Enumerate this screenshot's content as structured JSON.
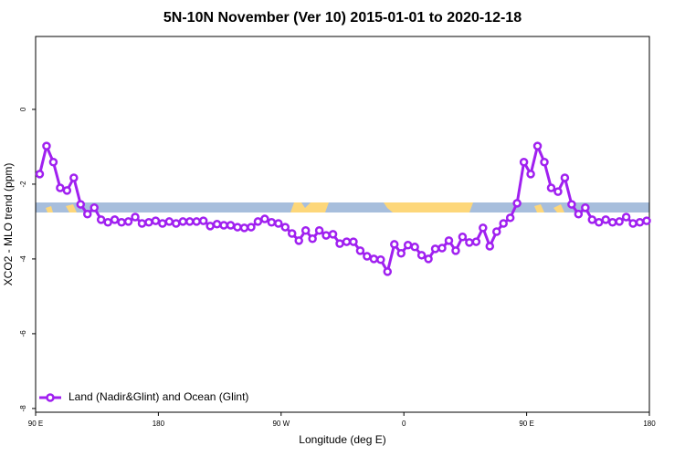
{
  "chart_data": {
    "type": "line",
    "title": "5N-10N November (Ver 10)   2015-01-01 to 2020-12-18",
    "x_label": "Longitude (deg E)",
    "y_label": "XCO2 - MLO trend (ppm)",
    "xlim": [
      90,
      540
    ],
    "ylim": [
      -8.1,
      1.95
    ],
    "xticks": [
      {
        "value": 90,
        "label": "90 E"
      },
      180,
      {
        "value": 270,
        "label": "90 W"
      },
      {
        "value": 360,
        "label": "0"
      },
      {
        "value": 450,
        "label": "90 E"
      },
      {
        "value": 540,
        "label": "180"
      }
    ],
    "yticks": [
      0,
      -2,
      -4,
      -6,
      -8
    ],
    "legend": "bottom-left",
    "x": [
      93,
      98,
      103,
      108,
      113,
      118,
      123,
      128,
      133,
      138,
      143,
      148,
      153,
      158,
      163,
      168,
      173,
      178,
      183,
      188,
      193,
      198,
      203,
      208,
      213,
      218,
      223,
      228,
      233,
      238,
      243,
      248,
      253,
      258,
      263,
      268,
      273,
      278,
      283,
      288,
      293,
      298,
      303,
      308,
      313,
      318,
      323,
      328,
      333,
      338,
      343,
      348,
      353,
      358,
      363,
      368,
      373,
      378,
      383,
      388,
      393,
      398,
      403,
      408,
      413,
      418,
      423,
      428,
      433,
      438,
      443,
      448,
      453,
      458,
      463,
      468,
      473,
      478,
      483,
      488,
      493,
      498,
      503,
      508,
      513,
      518,
      523,
      528,
      533,
      538
    ],
    "series": [
      {
        "name": "Land (Nadir&Glint) and Ocean (Glint)",
        "color": "#a020f0",
        "values": [
          -1.73,
          -0.98,
          -1.41,
          -2.1,
          -2.17,
          -1.83,
          -2.54,
          -2.8,
          -2.63,
          -2.95,
          -3.02,
          -2.95,
          -3.02,
          -3.0,
          -2.88,
          -3.05,
          -3.02,
          -2.98,
          -3.05,
          -3.0,
          -3.05,
          -3.0,
          -3.0,
          -3.0,
          -2.98,
          -3.12,
          -3.07,
          -3.1,
          -3.1,
          -3.15,
          -3.17,
          -3.15,
          -3.0,
          -2.93,
          -3.02,
          -3.05,
          -3.15,
          -3.32,
          -3.51,
          -3.24,
          -3.46,
          -3.24,
          -3.37,
          -3.34,
          -3.59,
          -3.54,
          -3.54,
          -3.78,
          -3.93,
          -4.0,
          -4.02,
          -4.34,
          -3.61,
          -3.85,
          -3.63,
          -3.68,
          -3.9,
          -4.0,
          -3.73,
          -3.71,
          -3.51,
          -3.78,
          -3.41,
          -3.56,
          -3.54,
          -3.17,
          -3.66,
          -3.27,
          -3.05,
          -2.9,
          -2.51,
          -1.41,
          -1.73,
          -0.98,
          -1.41,
          -2.1,
          -2.2,
          -1.83,
          -2.54,
          -2.8,
          -2.63,
          -2.95,
          -3.02,
          -2.95,
          -3.02,
          -3.0,
          -2.88,
          -3.05,
          -3.02,
          -2.98
        ]
      }
    ]
  }
}
